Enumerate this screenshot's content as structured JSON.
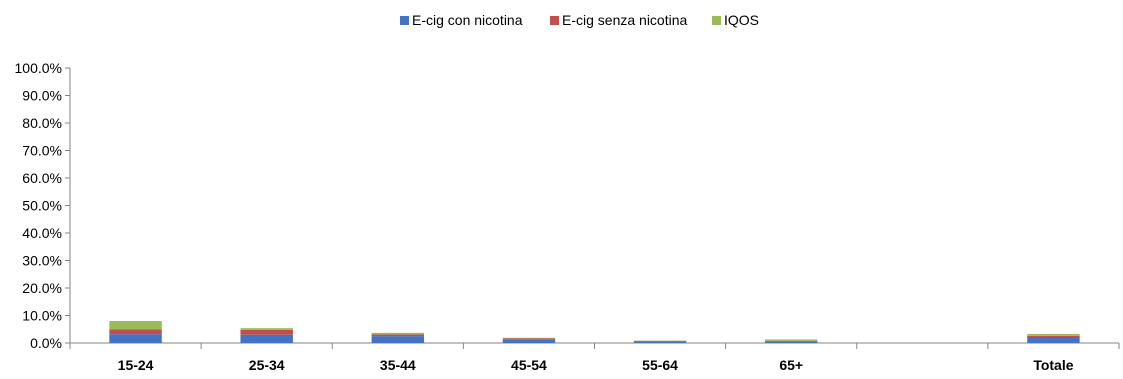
{
  "chart_data": {
    "type": "bar",
    "stacked": true,
    "categories": [
      "15-24",
      "25-34",
      "35-44",
      "45-54",
      "55-64",
      "65+",
      "",
      "Totale"
    ],
    "series": [
      {
        "name": "E-cig con nicotina",
        "color": "#4472C4",
        "values": [
          3.2,
          3.0,
          2.5,
          1.2,
          0.5,
          0.6,
          null,
          2.0
        ]
      },
      {
        "name": "E-cig senza nicotina",
        "color": "#C0504D",
        "values": [
          1.8,
          1.8,
          0.6,
          0.5,
          0.3,
          0.2,
          null,
          0.6
        ]
      },
      {
        "name": "IQOS",
        "color": "#9BBB59",
        "values": [
          3.0,
          0.6,
          0.6,
          0.2,
          0.1,
          0.5,
          null,
          0.7
        ]
      }
    ],
    "ylim": [
      0,
      100
    ],
    "yticks": [
      "0.0%",
      "10.0%",
      "20.0%",
      "30.0%",
      "40.0%",
      "50.0%",
      "60.0%",
      "70.0%",
      "80.0%",
      "90.0%",
      "100.0%"
    ],
    "legend_position": "top-center",
    "grid": false
  }
}
